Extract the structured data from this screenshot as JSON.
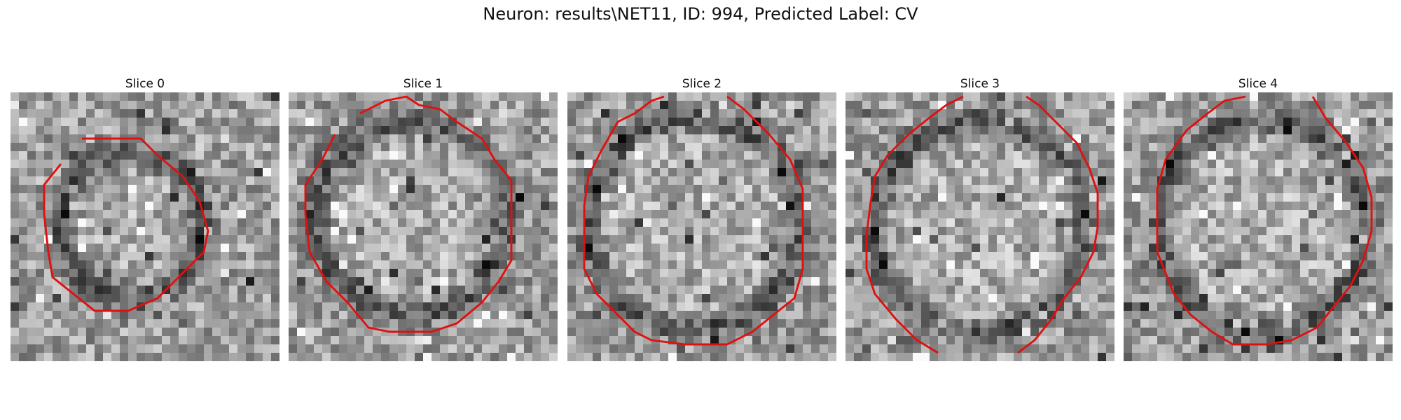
{
  "figure": {
    "title": "Neuron: results\\NET11, ID: 994, Predicted Label: CV"
  },
  "panels": [
    {
      "title": "Slice 0",
      "contour_color": "#e01010"
    },
    {
      "title": "Slice 1",
      "contour_color": "#e01010"
    },
    {
      "title": "Slice 2",
      "contour_color": "#e01010"
    },
    {
      "title": "Slice 3",
      "contour_color": "#e01010"
    },
    {
      "title": "Slice 4",
      "contour_color": "#e01010"
    }
  ]
}
